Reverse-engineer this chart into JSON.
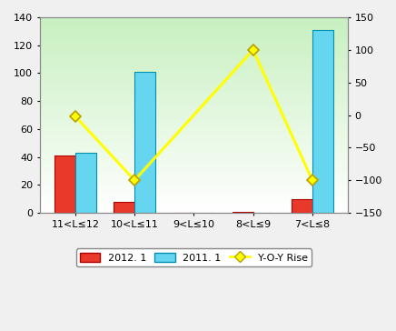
{
  "categories_display": [
    "11<L≤12",
    "10<L≤11",
    "9<L≤10",
    "8<L≤9",
    "7<L≤8"
  ],
  "val_2012": [
    41,
    8,
    0,
    1,
    10
  ],
  "val_2011": [
    43,
    101,
    0,
    0,
    131
  ],
  "yoy_rise": [
    -2,
    -100,
    null,
    100,
    -100
  ],
  "bar_color_2012": "#e8392a",
  "bar_color_2011": "#66d6f0",
  "bar_edge_2012": "#b00000",
  "bar_edge_2011": "#0090b0",
  "line_color": "#ffff00",
  "marker_color": "#ffff00",
  "marker_edge": "#b8a000",
  "ylim_left": [
    0,
    140
  ],
  "ylim_right": [
    -150,
    150
  ],
  "yticks_left": [
    0,
    20,
    40,
    60,
    80,
    100,
    120,
    140
  ],
  "yticks_right": [
    -150,
    -100,
    -50,
    0,
    50,
    100,
    150
  ],
  "bar_width": 0.35,
  "fig_bg": "#f0f0f0",
  "plot_bg_bottom": "#ffffff",
  "plot_bg_top": "#c8f0c0",
  "legend_labels": [
    "2012. 1",
    "2011. 1",
    "Y-O-Y Rise"
  ]
}
